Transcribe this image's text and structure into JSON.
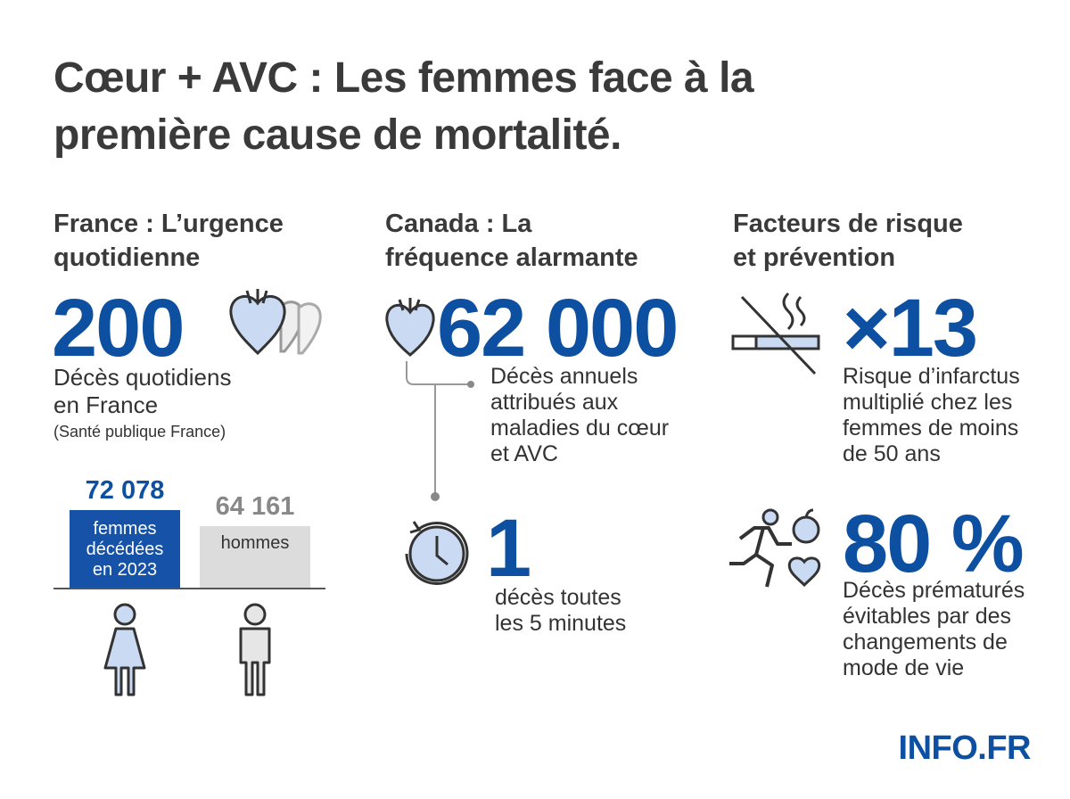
{
  "title": [
    "Cœur + AVC : Les femmes face à la",
    "première cause de mortalité."
  ],
  "columns": [
    {
      "heading": [
        "France : L’urgence",
        "quotidienne"
      ],
      "stat": "200",
      "caption": [
        "Décès quotidiens",
        "en France"
      ],
      "source": "(Santé publique France)",
      "bars": [
        {
          "value": "72 078",
          "label": [
            "femmes",
            "décédées",
            "en 2023"
          ]
        },
        {
          "value": "64 161",
          "label": [
            "hommes"
          ]
        }
      ]
    },
    {
      "heading": [
        "Canada : La",
        "fréquence alarmante"
      ],
      "stat": "62 000",
      "caption": [
        "Décès annuels",
        "attribués aux",
        "maladies du cœur",
        "et AVC"
      ],
      "stat2": "1",
      "caption2": [
        "décès toutes",
        "les 5 minutes"
      ]
    },
    {
      "heading": [
        "Facteurs de risque",
        "et prévention"
      ],
      "stat": "×13",
      "caption": [
        "Risque d’infarctus",
        "multiplié chez les",
        "femmes de moins",
        "de 50 ans"
      ],
      "stat2": "80 %",
      "caption2": [
        "Décès prématurés",
        "évitables par des",
        "changements de",
        "mode de vie"
      ]
    }
  ],
  "footer": "INFO.FR"
}
